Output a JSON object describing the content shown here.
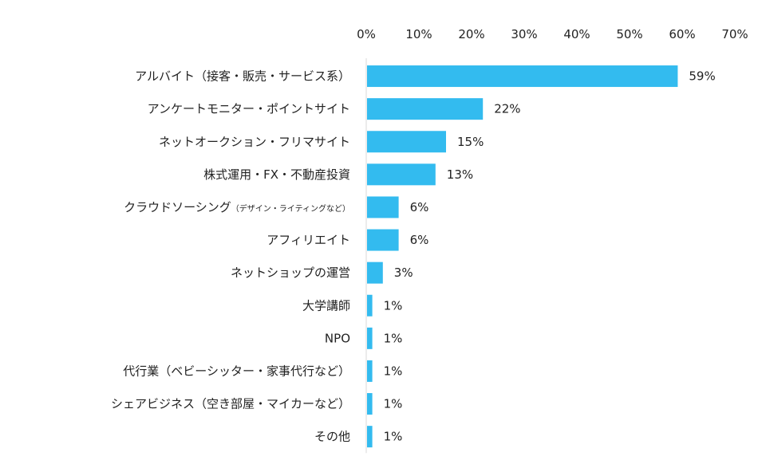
{
  "chart_data": {
    "type": "bar",
    "orientation": "horizontal",
    "title": "",
    "xlabel": "",
    "ylabel": "",
    "xlim": [
      0,
      70
    ],
    "ticks": [
      "0%",
      "10%",
      "20%",
      "30%",
      "40%",
      "50%",
      "60%",
      "70%"
    ],
    "grid": false,
    "bar_color": "#33bbef",
    "categories": [
      {
        "main": "アルバイト（接客・販売・サービス系）",
        "sub": ""
      },
      {
        "main": "アンケートモニター・ポイントサイト",
        "sub": ""
      },
      {
        "main": "ネットオークション・フリマサイト",
        "sub": ""
      },
      {
        "main": "株式運用・FX・不動産投資",
        "sub": ""
      },
      {
        "main": "クラウドソーシング",
        "sub": "（デザイン・ライティングなど）"
      },
      {
        "main": "アフィリエイト",
        "sub": ""
      },
      {
        "main": "ネットショップの運営",
        "sub": ""
      },
      {
        "main": "大学講師",
        "sub": ""
      },
      {
        "main": "NPO",
        "sub": ""
      },
      {
        "main": "代行業（ベビーシッター・家事代行など）",
        "sub": ""
      },
      {
        "main": "シェアビジネス（空き部屋・マイカーなど）",
        "sub": ""
      },
      {
        "main": "その他",
        "sub": ""
      }
    ],
    "values": [
      59,
      22,
      15,
      13,
      6,
      6,
      3,
      1,
      1,
      1,
      1,
      1
    ],
    "value_labels": [
      "59%",
      "22%",
      "15%",
      "13%",
      "6%",
      "6%",
      "3%",
      "1%",
      "1%",
      "1%",
      "1%",
      "1%"
    ]
  }
}
